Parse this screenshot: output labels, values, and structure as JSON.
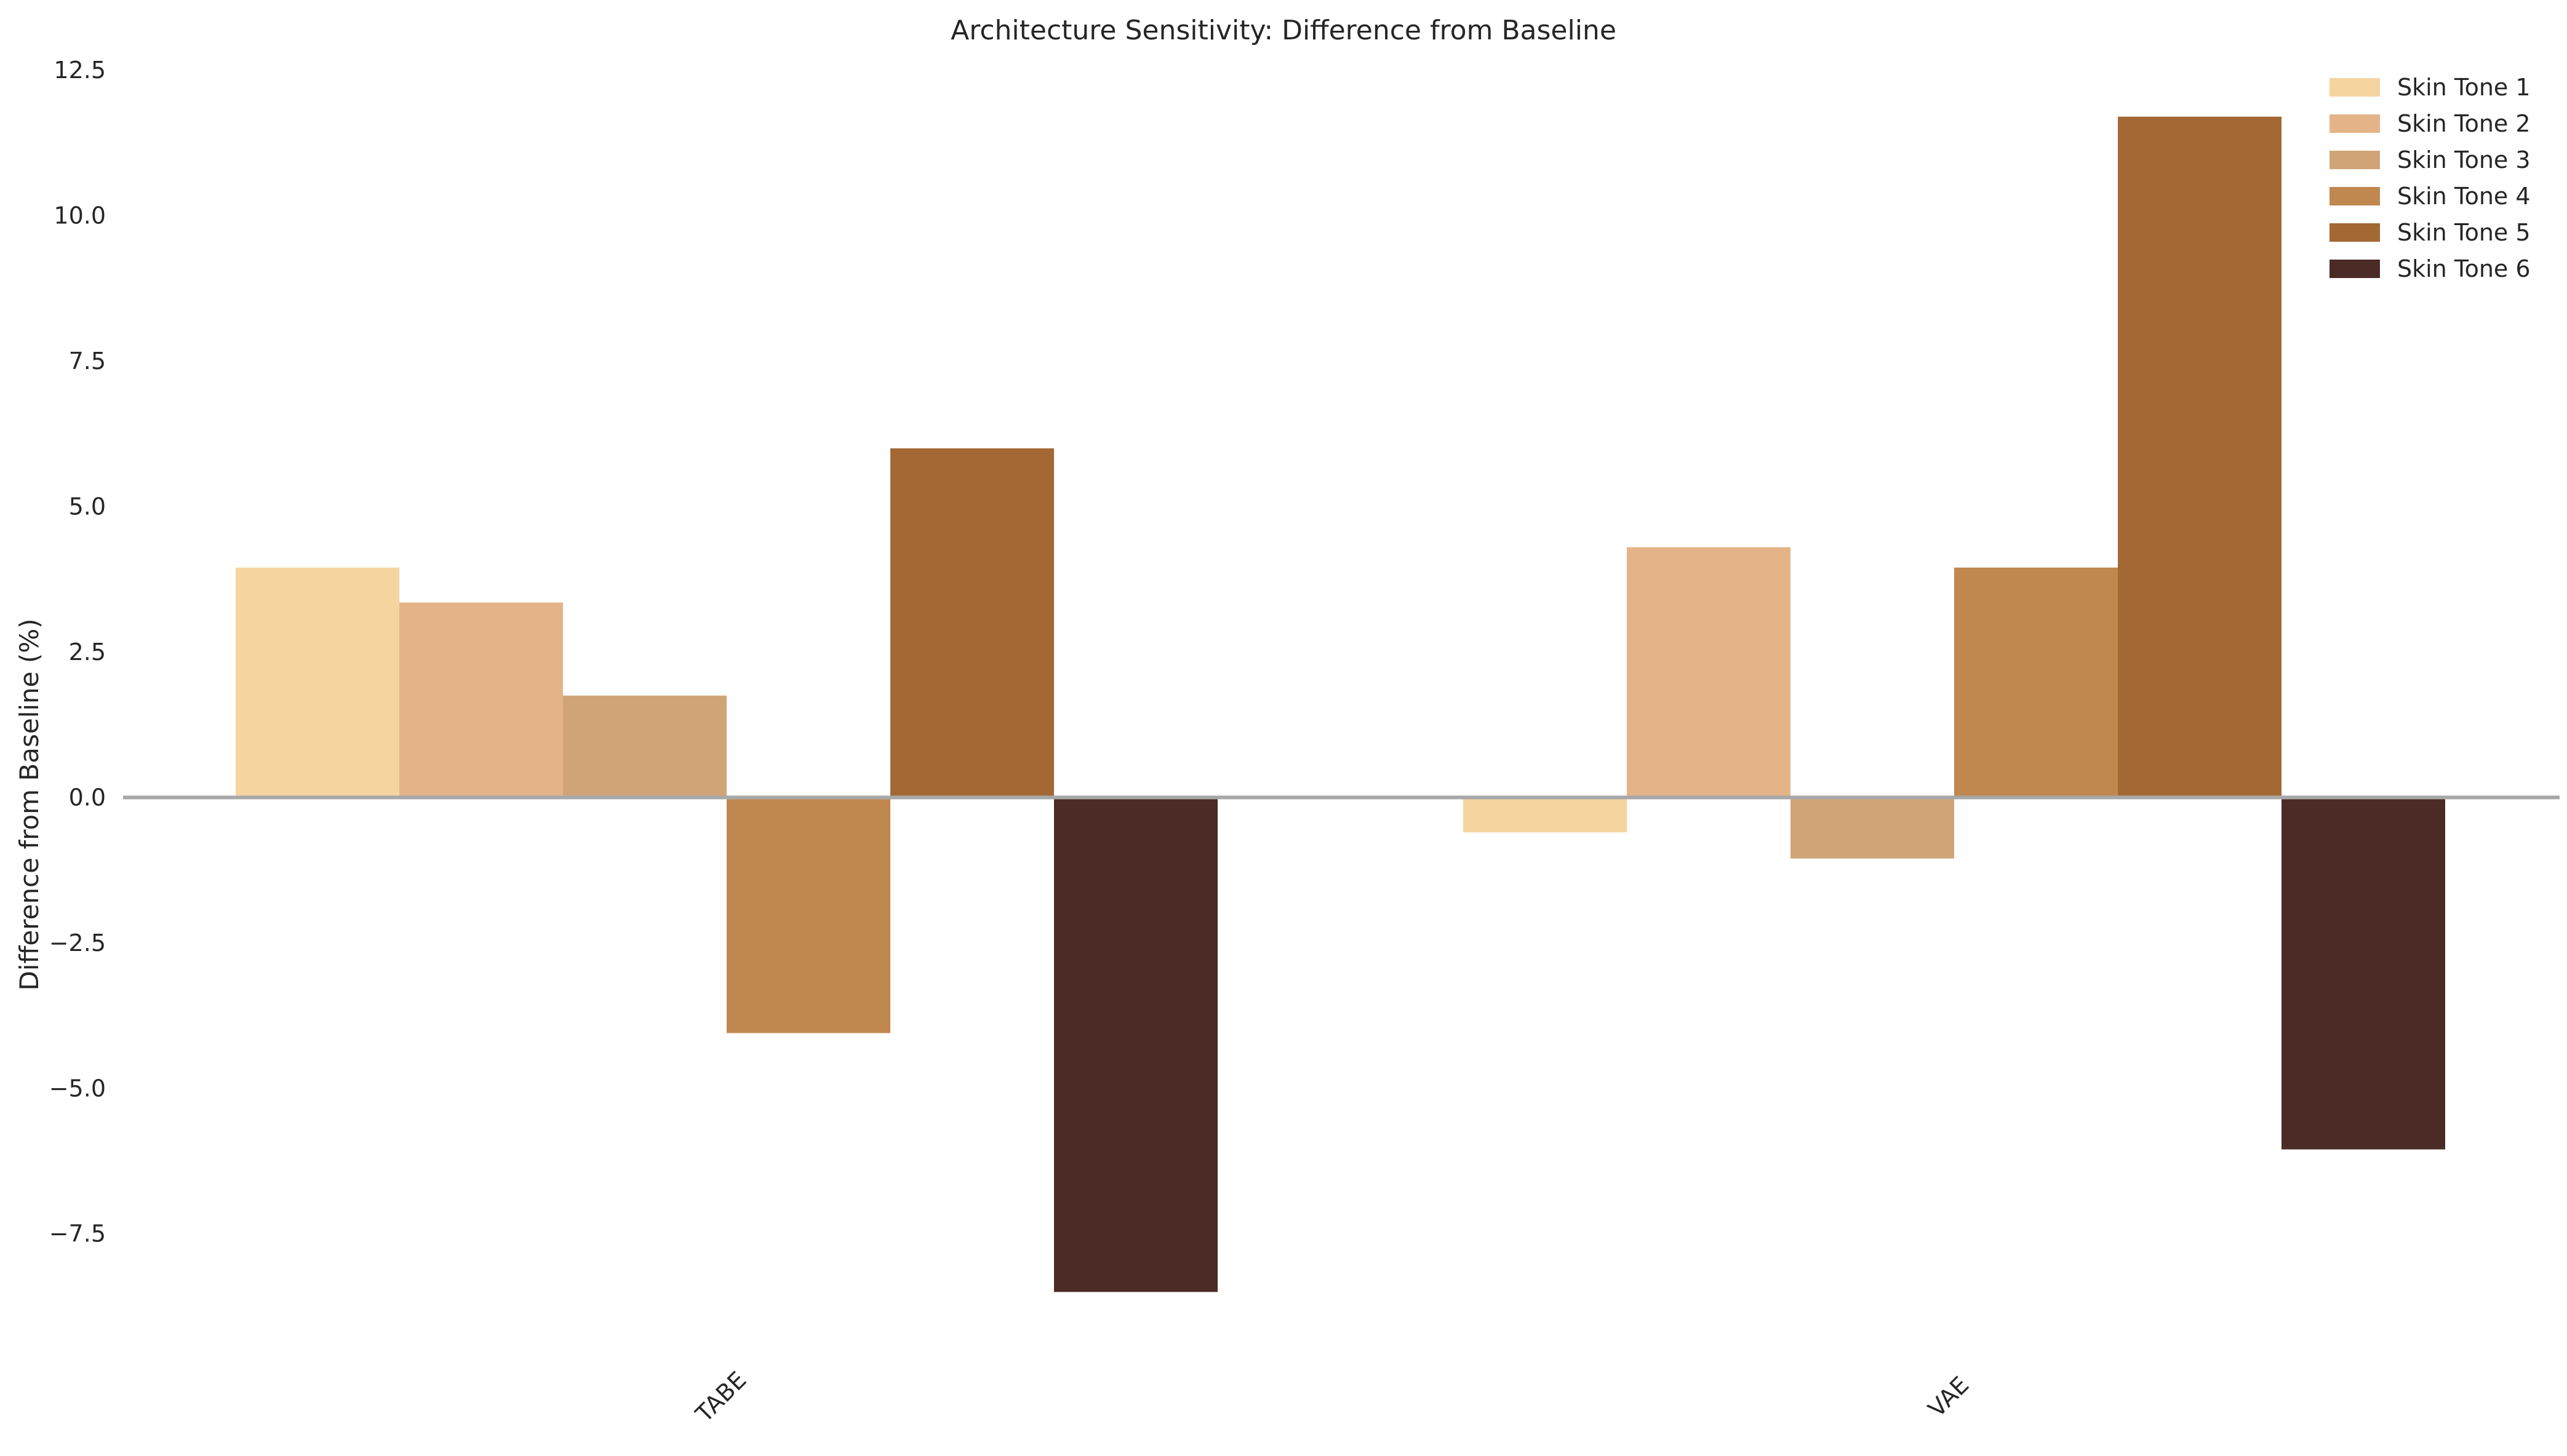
{
  "chart_data": {
    "type": "bar",
    "title": "Architecture Sensitivity: Difference from Baseline",
    "xlabel": "",
    "ylabel": "Difference from Baseline (%)",
    "categories": [
      "TABE",
      "VAE"
    ],
    "ylim": [
      -9.3,
      12.5
    ],
    "yticks": [
      12.5,
      10.0,
      7.5,
      5.0,
      2.5,
      0.0,
      -2.5,
      -5.0,
      -7.5
    ],
    "ytick_labels": [
      "12.5",
      "10.0",
      "7.5",
      "5.0",
      "2.5",
      "0.0",
      "−2.5",
      "−5.0",
      "−7.5"
    ],
    "grid": false,
    "legend_position": "top-right",
    "baseline_color": "#a8a8a8",
    "series": [
      {
        "name": "Skin Tone 1",
        "color": "#f5d4a0",
        "values": [
          3.95,
          -0.6
        ]
      },
      {
        "name": "Skin Tone 2",
        "color": "#e4b488",
        "values": [
          3.35,
          4.3
        ]
      },
      {
        "name": "Skin Tone 3",
        "color": "#d1a478",
        "values": [
          1.75,
          -1.05
        ]
      },
      {
        "name": "Skin Tone 4",
        "color": "#c0874e",
        "values": [
          -4.05,
          3.95
        ]
      },
      {
        "name": "Skin Tone 5",
        "color": "#a36834",
        "values": [
          6.0,
          11.7
        ]
      },
      {
        "name": "Skin Tone 6",
        "color": "#4a2b26",
        "values": [
          -8.5,
          -6.05
        ]
      }
    ]
  }
}
